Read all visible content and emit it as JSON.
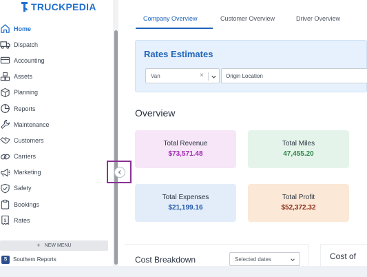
{
  "app": {
    "brand_name": "TRUCKPEDIA",
    "brand_color": "#1f6fd1"
  },
  "sidebar": {
    "items": [
      {
        "label": "Home",
        "icon": "home-icon",
        "active": true
      },
      {
        "label": "Dispatch",
        "icon": "truck-icon"
      },
      {
        "label": "Accounting",
        "icon": "wallet-icon"
      },
      {
        "label": "Assets",
        "icon": "boxes-icon"
      },
      {
        "label": "Planning",
        "icon": "cube-icon"
      },
      {
        "label": "Reports",
        "icon": "pie-chart-icon"
      },
      {
        "label": "Maintenance",
        "icon": "wrench-icon"
      },
      {
        "label": "Customers",
        "icon": "handshake-icon"
      },
      {
        "label": "Carriers",
        "icon": "link-icon"
      },
      {
        "label": "Marketing",
        "icon": "megaphone-icon"
      },
      {
        "label": "Safety",
        "icon": "shield-check-icon"
      },
      {
        "label": "Bookings",
        "icon": "clipboard-icon"
      },
      {
        "label": "Rates",
        "icon": "receipt-icon"
      }
    ],
    "new_menu_label": "NEW MENU",
    "new_menu_icon": "plus-icon",
    "saved_menus": [
      {
        "badge": "S",
        "label": "Southern Reports"
      }
    ],
    "collapse_icon": "chevron-left-icon"
  },
  "main": {
    "tabs": [
      {
        "label": "Company Overview",
        "active": true
      },
      {
        "label": "Customer Overview"
      },
      {
        "label": "Driver Overview"
      }
    ],
    "rates": {
      "title": "Rates Estimates",
      "equipment_value": "Van",
      "origin_placeholder": "Origin Location"
    },
    "overview_title": "Overview",
    "kpis": {
      "revenue": {
        "label": "Total Revenue",
        "value": "$73,571.48",
        "color": "#a429b3"
      },
      "miles": {
        "label": "Total Miles",
        "value": "47,455.20",
        "color": "#2e8a4a"
      },
      "expenses": {
        "label": "Total Expenses",
        "value": "$21,199.16",
        "color": "#2259a8"
      },
      "profit": {
        "label": "Total Profit",
        "value": "$52,372.32",
        "color": "#8a2a17"
      }
    },
    "cost_breakdown": {
      "title": "Cost Breakdown",
      "date_select": "Selected dates"
    },
    "cost_of_title": "Cost of"
  }
}
